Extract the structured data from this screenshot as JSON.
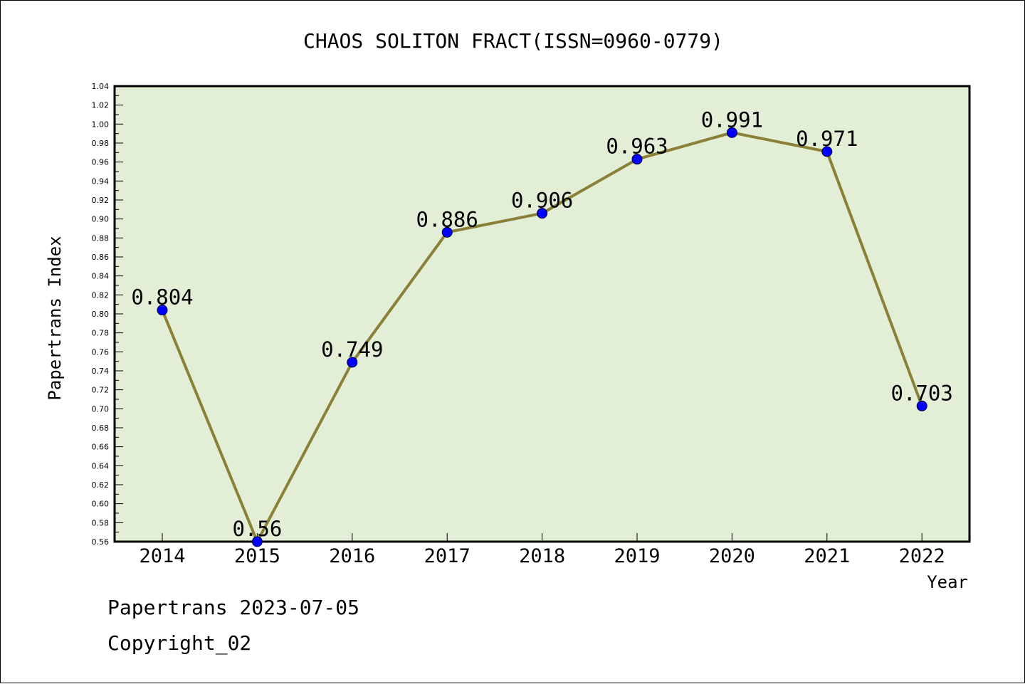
{
  "chart_data": {
    "type": "line",
    "title": "CHAOS SOLITON FRACT(ISSN=0960-0779)",
    "xlabel": "Year",
    "ylabel": "Papertrans Index",
    "x": [
      "2014",
      "2015",
      "2016",
      "2017",
      "2018",
      "2019",
      "2020",
      "2021",
      "2022"
    ],
    "series": [
      {
        "values": [
          0.804,
          0.56,
          0.749,
          0.886,
          0.906,
          0.963,
          0.991,
          0.971,
          0.703
        ],
        "labels": [
          "0.804",
          "0.56",
          "0.749",
          "0.886",
          "0.906",
          "0.963",
          "0.991",
          "0.971",
          "0.703"
        ]
      }
    ],
    "ylim": [
      0.56,
      1.04
    ],
    "yticks": [
      "0.56",
      "0.58",
      "0.60",
      "0.62",
      "0.64",
      "0.66",
      "0.68",
      "0.70",
      "0.72",
      "0.74",
      "0.76",
      "0.78",
      "0.80",
      "0.82",
      "0.84",
      "0.86",
      "0.88",
      "0.90",
      "0.92",
      "0.94",
      "0.96",
      "0.98",
      "1.00",
      "1.02",
      "1.04"
    ],
    "grid": false,
    "legend": "none",
    "colors": {
      "plot_background": "#e2efd6",
      "line": "#8b8038",
      "marker": "#0000ff"
    }
  },
  "footer": {
    "source_line": "Papertrans 2023-07-05",
    "copyright_line": "Copyright_02"
  }
}
